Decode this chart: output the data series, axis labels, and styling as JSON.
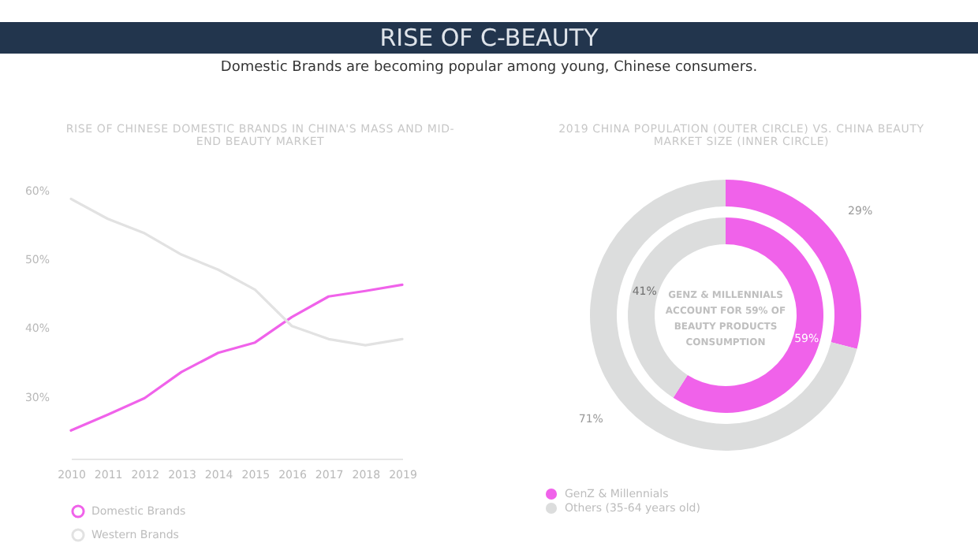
{
  "chart_data": [
    {
      "type": "line",
      "title": "RISE OF C-BEAUTY",
      "subtitle": "Domestic Brands are becoming popular among young, Chinese consumers.",
      "xlabel": "RISE OF CHINESE DOMESTIC BRANDS IN CHINA'S MASS AND MID-END BEAUTY MARKET",
      "categories": [
        "2010",
        "2011",
        "2012",
        "2013",
        "2014",
        "2015",
        "2016",
        "2017",
        "2018",
        "2019"
      ],
      "series": [
        {
          "name": "Domestic Brands",
          "color": "#f062ea",
          "values": [
            25.1,
            27.4,
            29.8,
            33.6,
            36.4,
            37.9,
            41.6,
            44.6,
            45.4,
            46.3
          ]
        },
        {
          "name": "Western Brands",
          "color": "#e2e2e2",
          "values": [
            58.8,
            55.9,
            53.8,
            50.7,
            48.5,
            45.6,
            40.3,
            38.4,
            37.5,
            38.4
          ]
        }
      ],
      "ylim": [
        21,
        60
      ],
      "yticks": [
        {
          "value": 30,
          "label": "30%"
        },
        {
          "value": 40,
          "label": "40%"
        },
        {
          "value": 50,
          "label": "50%"
        },
        {
          "value": 60,
          "label": "60%"
        }
      ],
      "grid": false,
      "legend": "bottom",
      "marker": "none"
    },
    {
      "type": "donut",
      "title": "2019 CHINA POPULATION (OUTER CIRCLE) VS. CHINA BEAUTY MARKET SIZE (INNER CIRCLE)",
      "categories": [
        "GenZ & Millennials",
        "Others (35-64 years old)"
      ],
      "colors": [
        "#f062ea",
        "#dcdddd"
      ],
      "series": [
        {
          "values": [
            29,
            71
          ],
          "value_labels": [
            "29%",
            "71%"
          ]
        },
        {
          "values": [
            59,
            41
          ],
          "value_labels": [
            "59%",
            "41%"
          ]
        }
      ],
      "annotations": [
        "GENZ & MILLENNIALS ACCOUNT FOR 59% OF BEAUTY PRODUCTS CONSUMPTION"
      ],
      "legend": "bottom"
    }
  ]
}
